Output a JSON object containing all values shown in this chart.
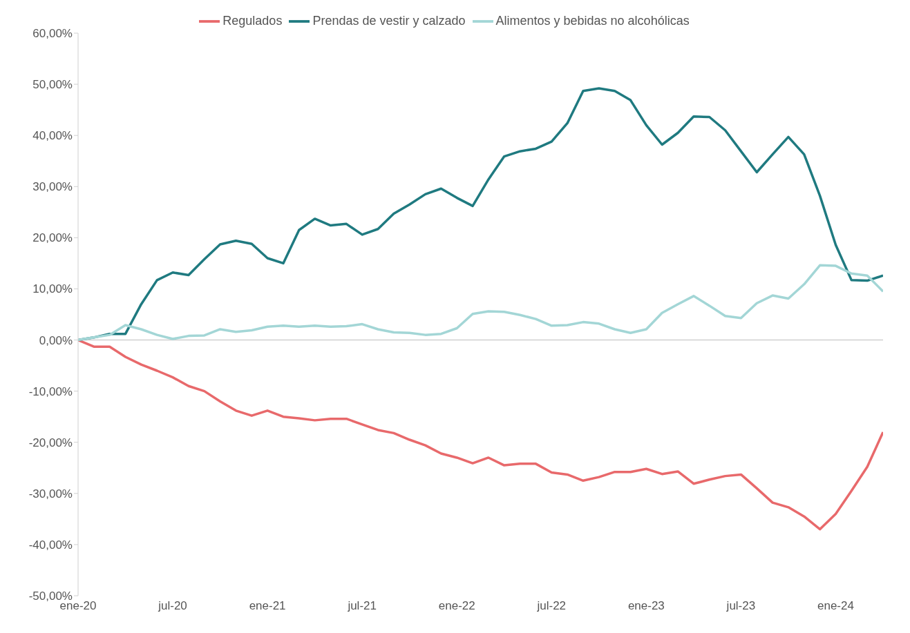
{
  "chart_data": {
    "type": "line",
    "x": [
      "2020-01",
      "2020-02",
      "2020-03",
      "2020-04",
      "2020-05",
      "2020-06",
      "2020-07",
      "2020-08",
      "2020-09",
      "2020-10",
      "2020-11",
      "2020-12",
      "2021-01",
      "2021-02",
      "2021-03",
      "2021-04",
      "2021-05",
      "2021-06",
      "2021-07",
      "2021-08",
      "2021-09",
      "2021-10",
      "2021-11",
      "2021-12",
      "2022-01",
      "2022-02",
      "2022-03",
      "2022-04",
      "2022-05",
      "2022-06",
      "2022-07",
      "2022-08",
      "2022-09",
      "2022-10",
      "2022-11",
      "2022-12",
      "2023-01",
      "2023-02",
      "2023-03",
      "2023-04",
      "2023-05",
      "2023-06",
      "2023-07",
      "2023-08",
      "2023-09",
      "2023-10",
      "2023-11",
      "2023-12",
      "2024-01",
      "2024-02",
      "2024-03",
      "2024-04"
    ],
    "series": [
      {
        "name": "Regulados",
        "color": "#e8696b",
        "values": [
          0,
          -1.3,
          -1.3,
          -3.3,
          -4.8,
          -6.0,
          -7.3,
          -9.0,
          -10.0,
          -12.0,
          -13.8,
          -14.8,
          -13.8,
          -15.0,
          -15.3,
          -15.7,
          -15.4,
          -15.4,
          -16.5,
          -17.6,
          -18.2,
          -19.5,
          -20.6,
          -22.2,
          -23.0,
          -24.1,
          -23.0,
          -24.5,
          -24.2,
          -24.2,
          -25.9,
          -26.3,
          -27.5,
          -26.8,
          -25.8,
          -25.8,
          -25.2,
          -26.2,
          -25.7,
          -28.1,
          -27.3,
          -26.6,
          -26.3,
          -29.0,
          -31.8,
          -32.7,
          -34.5,
          -37.0,
          -34.0,
          -29.5,
          -24.8,
          -18.0
        ]
      },
      {
        "name": "Prendas de vestir y calzado",
        "color": "#1f7a80",
        "values": [
          0,
          0.5,
          1.2,
          1.2,
          7.0,
          11.7,
          13.2,
          12.7,
          15.8,
          18.7,
          19.4,
          18.8,
          16.0,
          15.0,
          21.5,
          23.7,
          22.4,
          22.7,
          20.6,
          21.7,
          24.7,
          26.5,
          28.5,
          29.6,
          27.8,
          26.2,
          31.4,
          35.9,
          36.9,
          37.4,
          38.8,
          42.4,
          48.7,
          49.2,
          48.7,
          46.9,
          42.0,
          38.2,
          40.5,
          43.7,
          43.6,
          41.0,
          36.9,
          32.8,
          36.3,
          39.7,
          36.3,
          28.2,
          18.6,
          11.7,
          11.6,
          12.6
        ]
      },
      {
        "name": "Alimentos y bebidas no alcohólicas",
        "color": "#a3d6d6",
        "values": [
          0,
          0.5,
          1.0,
          2.9,
          2.1,
          1.0,
          0.2,
          0.8,
          0.9,
          2.1,
          1.6,
          1.9,
          2.6,
          2.8,
          2.6,
          2.8,
          2.6,
          2.7,
          3.1,
          2.1,
          1.5,
          1.4,
          1.0,
          1.2,
          2.3,
          5.1,
          5.6,
          5.5,
          4.9,
          4.1,
          2.8,
          2.9,
          3.5,
          3.2,
          2.1,
          1.4,
          2.1,
          5.3,
          7.0,
          8.6,
          6.7,
          4.7,
          4.3,
          7.2,
          8.7,
          8.1,
          10.9,
          14.6,
          14.5,
          13.0,
          12.6,
          9.5
        ]
      }
    ],
    "xlim": [
      "2020-01",
      "2024-04"
    ],
    "xticks": [
      {
        "value": "2020-01",
        "label": "ene-20"
      },
      {
        "value": "2020-07",
        "label": "jul-20"
      },
      {
        "value": "2021-01",
        "label": "ene-21"
      },
      {
        "value": "2021-07",
        "label": "jul-21"
      },
      {
        "value": "2022-01",
        "label": "ene-22"
      },
      {
        "value": "2022-07",
        "label": "jul-22"
      },
      {
        "value": "2023-01",
        "label": "ene-23"
      },
      {
        "value": "2023-07",
        "label": "jul-23"
      },
      {
        "value": "2024-01",
        "label": "ene-24"
      }
    ],
    "ylim": [
      -50,
      60
    ],
    "yticks": [
      {
        "value": -50,
        "label": "-50,00%"
      },
      {
        "value": -40,
        "label": "-40,00%"
      },
      {
        "value": -30,
        "label": "-30,00%"
      },
      {
        "value": -20,
        "label": "-20,00%"
      },
      {
        "value": -10,
        "label": "-10,00%"
      },
      {
        "value": 0,
        "label": "0,00%"
      },
      {
        "value": 10,
        "label": "10,00%"
      },
      {
        "value": 20,
        "label": "20,00%"
      },
      {
        "value": 30,
        "label": "30,00%"
      },
      {
        "value": 40,
        "label": "40,00%"
      },
      {
        "value": 50,
        "label": "50,00%"
      },
      {
        "value": 60,
        "label": "60,00%"
      }
    ],
    "ref_lines": [
      {
        "axis": "y",
        "value": 0,
        "color": "#d0d0d0"
      }
    ],
    "grid": false,
    "legend": "top",
    "marker": "none",
    "line_style": "solid"
  }
}
